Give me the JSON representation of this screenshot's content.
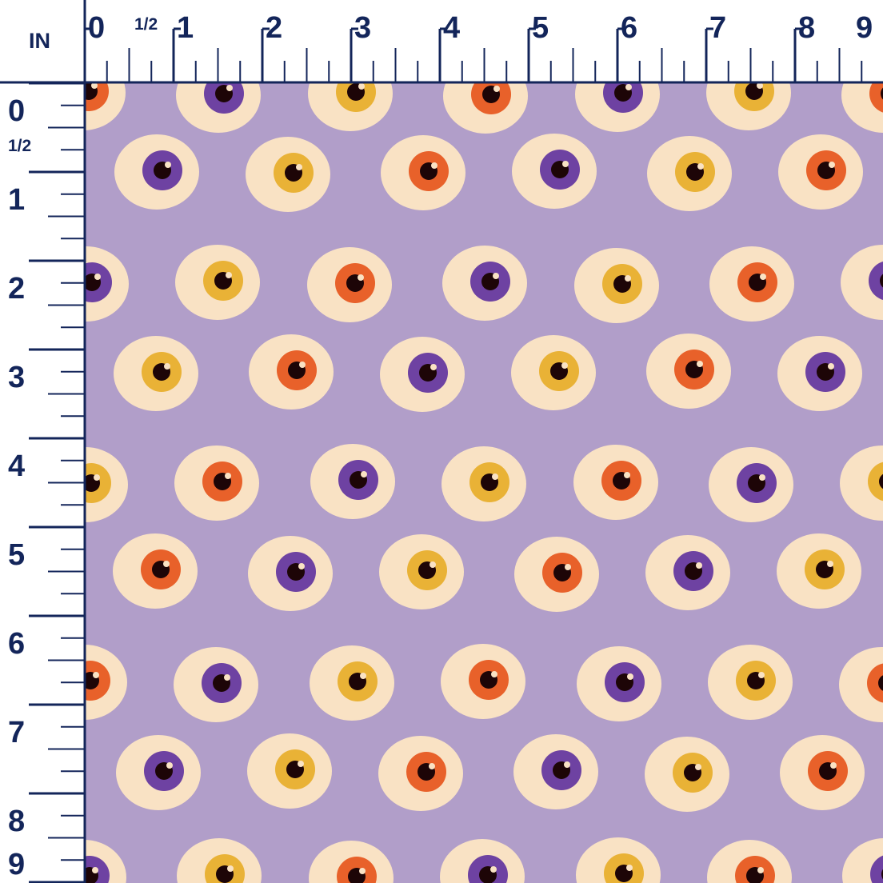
{
  "ruler": {
    "unit_label": "IN",
    "top_labels": [
      "0",
      "1/2",
      "1",
      "2",
      "3",
      "4",
      "5",
      "6",
      "7",
      "8",
      "9"
    ],
    "left_labels": [
      "0",
      "1/2",
      "1",
      "2",
      "3",
      "4",
      "5",
      "6",
      "7",
      "8",
      "9"
    ],
    "color": "#13255a"
  },
  "fabric": {
    "background_color": "#b19ec9",
    "sclera_color": "#f9e2c4",
    "pupil_color": "#1d0507",
    "highlight_color": "#f9e2c4",
    "iris_colors": {
      "orange": "#e8612a",
      "purple": "#6e42a2",
      "yellow": "#e9b236"
    },
    "iris_sequence": [
      "yellow",
      "orange",
      "purple"
    ]
  }
}
